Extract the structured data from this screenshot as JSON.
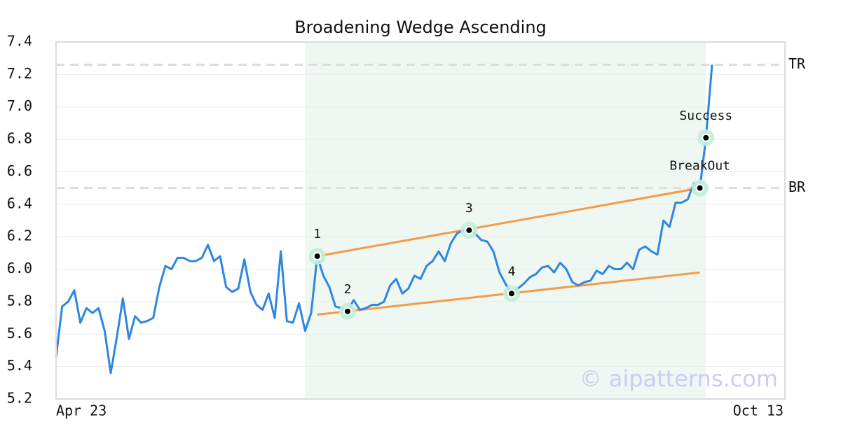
{
  "chart_data": {
    "type": "line",
    "title": "Broadening Wedge Ascending",
    "categories": [
      "Apr 23",
      null,
      null,
      null,
      null,
      null,
      null,
      null,
      null,
      null,
      null,
      null,
      null,
      null,
      null,
      null,
      null,
      null,
      null,
      null,
      null,
      null,
      null,
      null,
      null,
      null,
      null,
      null,
      null,
      null,
      null,
      null,
      null,
      null,
      null,
      null,
      null,
      null,
      null,
      null,
      null,
      null,
      null,
      null,
      null,
      null,
      null,
      null,
      null,
      null,
      null,
      null,
      null,
      null,
      null,
      null,
      null,
      null,
      null,
      null,
      null,
      null,
      null,
      null,
      null,
      null,
      null,
      null,
      null,
      null,
      null,
      null,
      null,
      null,
      null,
      null,
      null,
      null,
      null,
      null,
      null,
      null,
      null,
      null,
      null,
      null,
      null,
      null,
      null,
      null,
      null,
      null,
      null,
      null,
      null,
      null,
      null,
      null,
      null,
      null,
      null,
      null,
      null,
      null,
      null,
      null,
      null,
      null,
      null,
      null,
      null,
      null,
      null,
      null,
      null,
      null,
      null,
      null,
      null,
      null,
      "Oct 13"
    ],
    "color": "#2e86de",
    "values": [
      5.46,
      5.77,
      5.8,
      5.87,
      5.67,
      5.76,
      5.73,
      5.76,
      5.62,
      5.36,
      5.58,
      5.82,
      5.57,
      5.71,
      5.67,
      5.68,
      5.7,
      5.89,
      6.02,
      6.0,
      6.07,
      6.07,
      6.05,
      6.05,
      6.07,
      6.15,
      6.05,
      6.08,
      5.89,
      5.86,
      5.88,
      6.06,
      5.86,
      5.78,
      5.75,
      5.85,
      5.7,
      6.11,
      5.68,
      5.67,
      5.79,
      5.62,
      5.73,
      6.08,
      5.96,
      5.89,
      5.77,
      5.76,
      5.74,
      5.81,
      5.75,
      5.76,
      5.78,
      5.78,
      5.8,
      5.9,
      5.94,
      5.85,
      5.88,
      5.96,
      5.94,
      6.02,
      6.05,
      6.11,
      6.05,
      6.16,
      6.22,
      6.24,
      6.24,
      6.22,
      6.18,
      6.17,
      6.11,
      5.98,
      5.91,
      5.85,
      5.88,
      5.91,
      5.95,
      5.97,
      6.01,
      6.02,
      5.98,
      6.04,
      6.0,
      5.92,
      5.9,
      5.92,
      5.93,
      5.99,
      5.97,
      6.02,
      6.0,
      6.0,
      6.04,
      6.0,
      6.12,
      6.14,
      6.11,
      6.09,
      6.3,
      6.26,
      6.41,
      6.41,
      6.43,
      6.53,
      6.5,
      6.81,
      7.26,
      null,
      null,
      null,
      null,
      null,
      null,
      null,
      null,
      null,
      null,
      null,
      null
    ],
    "ylim": [
      5.2,
      7.4
    ],
    "yticks": [
      5.2,
      5.4,
      5.6,
      5.8,
      {
        "value": 6,
        "label": "6.0"
      },
      6.2,
      6.4,
      6.6,
      6.8,
      {
        "value": 7,
        "label": "7.0"
      },
      7.2,
      7.4
    ],
    "grid": true,
    "shade": {
      "from": 41,
      "to": 107,
      "color": "#eef7f2"
    },
    "trendlines": [
      {
        "from": 43,
        "to": 106,
        "values": [
          6.08,
          6.5
        ],
        "color": "#f39c45"
      },
      {
        "from": 43,
        "to": 106,
        "values": [
          5.72,
          5.98
        ],
        "color": "#f39c45"
      }
    ],
    "hlines": [
      {
        "label": "TR",
        "value": 7.26
      },
      {
        "label": "BR",
        "value": 6.5
      }
    ],
    "points": [
      {
        "label": "1",
        "index": 43,
        "value": 6.08
      },
      {
        "label": "2",
        "index": 48,
        "value": 5.74
      },
      {
        "label": "3",
        "index": 68,
        "value": 6.24
      },
      {
        "label": "4",
        "index": 75,
        "value": 5.85
      },
      {
        "label": "BreakOut",
        "index": 106,
        "value": 6.5
      },
      {
        "label": "Success",
        "index": 107,
        "value": 6.81
      }
    ],
    "watermark": "© aipatterns.com"
  }
}
